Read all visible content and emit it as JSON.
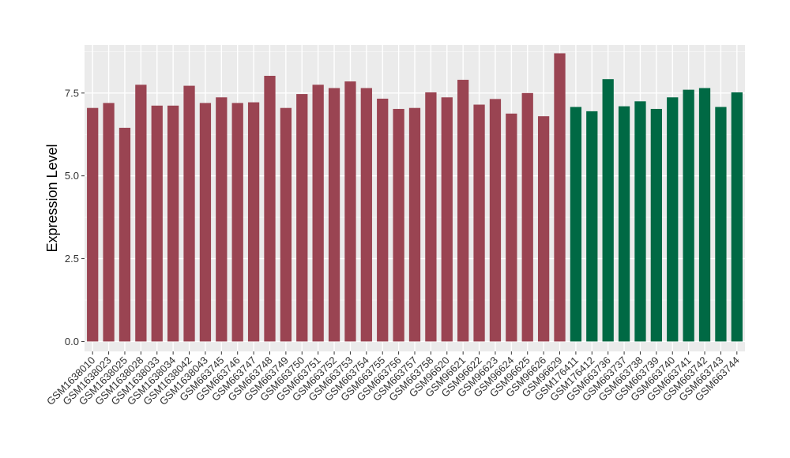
{
  "chart_data": {
    "type": "bar",
    "title": "",
    "xlabel": "",
    "ylabel": "Expression Level",
    "ylim": [
      -0.3,
      8.95
    ],
    "yticks": [
      0.0,
      2.5,
      5.0,
      7.5
    ],
    "ytick_labels": [
      "0.0",
      "2.5",
      "5.0",
      "7.5"
    ],
    "grid": true,
    "legend": "none",
    "colors": {
      "panel_background": "#ebebeb",
      "grid_major": "#ffffff",
      "group_1": "#9a4452",
      "group_2": "#006944"
    },
    "categories": [
      "GSM1638010",
      "GSM1638023",
      "GSM1638025",
      "GSM1638028",
      "GSM1638033",
      "GSM1638034",
      "GSM1638042",
      "GSM1638043",
      "GSM663745",
      "GSM663746",
      "GSM663747",
      "GSM663748",
      "GSM663749",
      "GSM663750",
      "GSM663751",
      "GSM663752",
      "GSM663753",
      "GSM663754",
      "GSM663755",
      "GSM663756",
      "GSM663757",
      "GSM663758",
      "GSM96620",
      "GSM96621",
      "GSM96622",
      "GSM96623",
      "GSM96624",
      "GSM96625",
      "GSM96626",
      "GSM96629",
      "GSM176411",
      "GSM176412",
      "GSM663736",
      "GSM663737",
      "GSM663738",
      "GSM663739",
      "GSM663740",
      "GSM663741",
      "GSM663742",
      "GSM663743",
      "GSM663744"
    ],
    "values": [
      7.05,
      7.2,
      6.45,
      7.75,
      7.12,
      7.12,
      7.72,
      7.2,
      7.37,
      7.2,
      7.22,
      8.02,
      7.05,
      7.47,
      7.75,
      7.65,
      7.85,
      7.65,
      7.33,
      7.02,
      7.05,
      7.52,
      7.37,
      7.9,
      7.15,
      7.32,
      6.88,
      7.5,
      6.8,
      8.7,
      7.08,
      6.95,
      7.92,
      7.1,
      7.25,
      7.02,
      7.37,
      7.6,
      7.65,
      7.08,
      7.52
    ],
    "groups": [
      1,
      1,
      1,
      1,
      1,
      1,
      1,
      1,
      1,
      1,
      1,
      1,
      1,
      1,
      1,
      1,
      1,
      1,
      1,
      1,
      1,
      1,
      1,
      1,
      1,
      1,
      1,
      1,
      1,
      1,
      2,
      2,
      2,
      2,
      2,
      2,
      2,
      2,
      2,
      2,
      2
    ]
  }
}
